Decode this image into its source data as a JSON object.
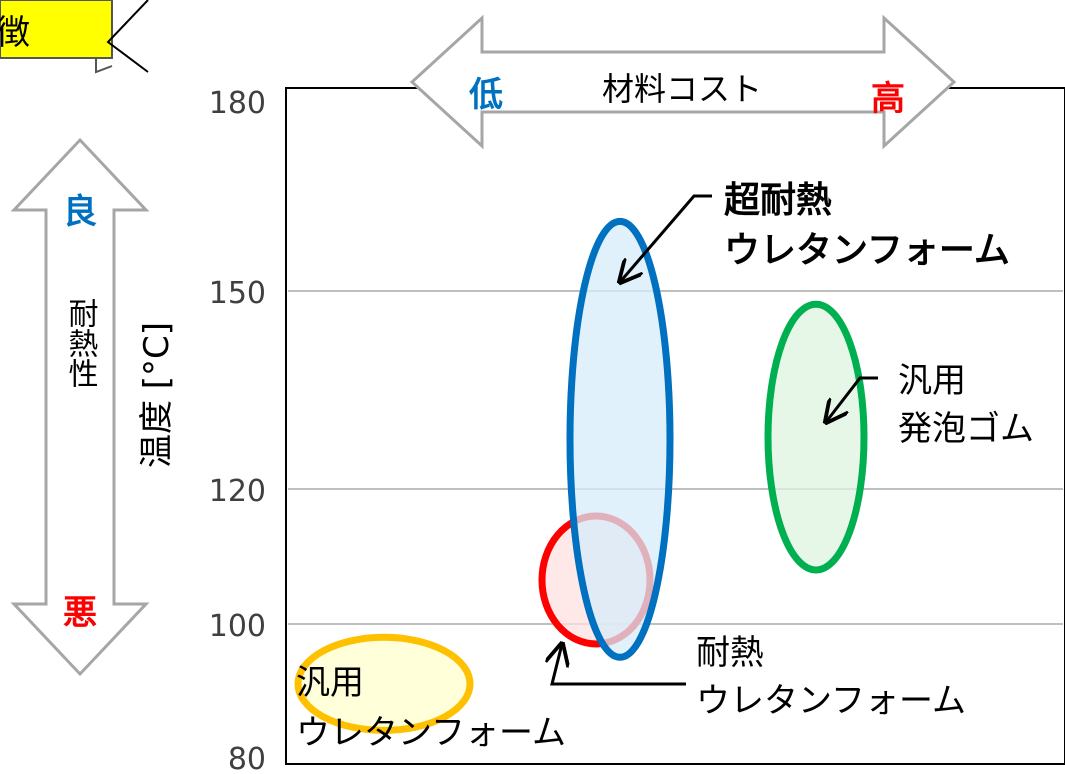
{
  "banner": {
    "text": "徴",
    "fill": "#ffff00"
  },
  "cost_arrow": {
    "low": "低",
    "label": "材料コスト",
    "high": "高"
  },
  "heat_arrow": {
    "good": "良",
    "label": "耐熱性",
    "bad": "悪"
  },
  "chart_data": {
    "type": "scatter",
    "title": "",
    "ylabel": "温度 [°C]",
    "xlabel": "",
    "ylim": [
      80,
      180
    ],
    "yticks": [
      80,
      100,
      120,
      150,
      180
    ],
    "ygrid": [
      100,
      120,
      150
    ],
    "grid": true,
    "regions": [
      {
        "name": "汎用 ウレタンフォーム",
        "label_lines": [
          "汎用",
          "ウレタンフォーム"
        ],
        "cost_rank": 1,
        "temp_min": 84,
        "temp_max": 98,
        "stroke": "#ffc000",
        "fill": "#ffffcc"
      },
      {
        "name": "耐熱 ウレタンフォーム",
        "label_lines": [
          "耐熱",
          "ウレタンフォーム"
        ],
        "cost_rank": 2,
        "temp_min": 97,
        "temp_max": 116,
        "stroke": "#ff0000",
        "fill": "#ffe0e0"
      },
      {
        "name": "超耐熱 ウレタンフォーム",
        "label_lines": [
          "超耐熱",
          "ウレタンフォーム"
        ],
        "cost_rank": 3,
        "temp_min": 95,
        "temp_max": 161,
        "stroke": "#0070c0",
        "fill": "#d6ecfa"
      },
      {
        "name": "汎用 発泡ゴム",
        "label_lines": [
          "汎用",
          "発泡ゴム"
        ],
        "cost_rank": 4,
        "temp_min": 108,
        "temp_max": 148,
        "stroke": "#00b050",
        "fill": "#ddf4e0"
      }
    ]
  }
}
